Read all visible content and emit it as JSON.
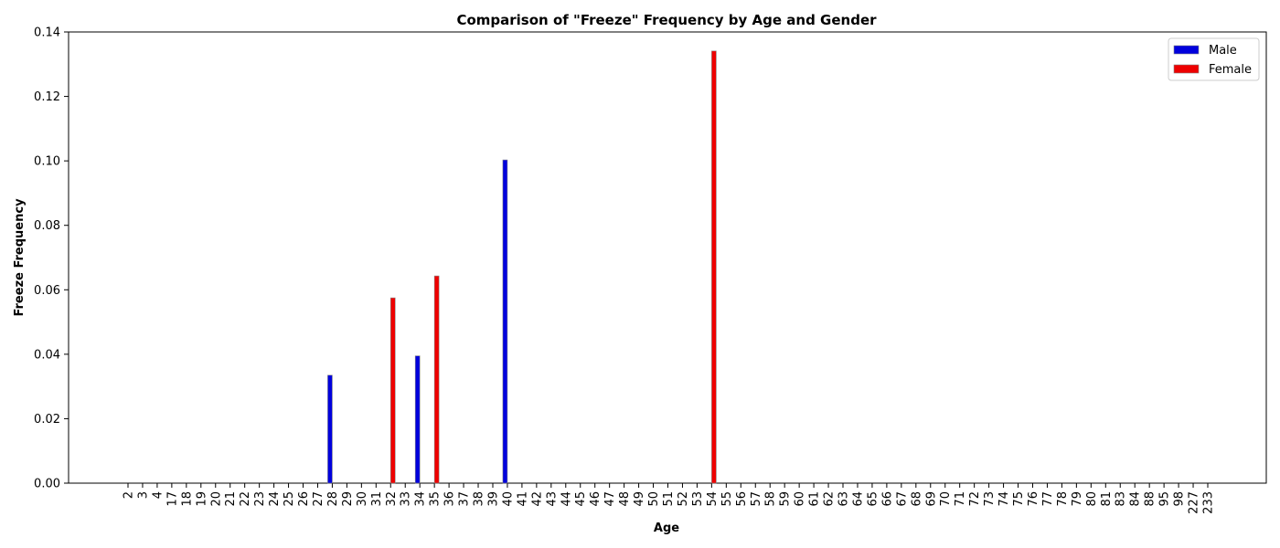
{
  "chart_data": {
    "type": "bar",
    "title": "Comparison of \"Freeze\" Frequency by Age and Gender",
    "xlabel": "Age",
    "ylabel": "Freeze Frequency",
    "ylim": [
      0,
      0.14
    ],
    "y_ticks": [
      "0.00",
      "0.02",
      "0.04",
      "0.06",
      "0.08",
      "0.10",
      "0.12",
      "0.14"
    ],
    "grid": false,
    "legend_position": "top-right",
    "categories": [
      "2",
      "3",
      "4",
      "17",
      "18",
      "19",
      "20",
      "21",
      "22",
      "23",
      "24",
      "25",
      "26",
      "27",
      "28",
      "29",
      "30",
      "31",
      "32",
      "33",
      "34",
      "35",
      "36",
      "37",
      "38",
      "39",
      "40",
      "41",
      "42",
      "43",
      "44",
      "45",
      "46",
      "47",
      "48",
      "49",
      "50",
      "51",
      "52",
      "53",
      "54",
      "55",
      "56",
      "57",
      "58",
      "59",
      "60",
      "61",
      "62",
      "63",
      "64",
      "65",
      "66",
      "67",
      "68",
      "69",
      "70",
      "71",
      "72",
      "73",
      "74",
      "75",
      "76",
      "77",
      "78",
      "79",
      "80",
      "81",
      "83",
      "84",
      "88",
      "95",
      "98",
      "227",
      "233"
    ],
    "series": [
      {
        "name": "Male",
        "color": "#0000dd",
        "values": [
          0,
          0,
          0,
          0,
          0,
          0,
          0,
          0,
          0,
          0,
          0,
          0,
          0,
          0,
          0.0335,
          0,
          0,
          0,
          0,
          0,
          0.0395,
          0,
          0,
          0,
          0,
          0,
          0.1003,
          0,
          0,
          0,
          0,
          0,
          0,
          0,
          0,
          0,
          0,
          0,
          0,
          0,
          0,
          0,
          0,
          0,
          0,
          0,
          0,
          0,
          0,
          0,
          0,
          0,
          0,
          0,
          0,
          0,
          0,
          0,
          0,
          0,
          0,
          0,
          0,
          0,
          0,
          0,
          0,
          0,
          0,
          0,
          0,
          0,
          0,
          0,
          0
        ]
      },
      {
        "name": "Female",
        "color": "#ee0000",
        "values": [
          0,
          0,
          0,
          0,
          0,
          0,
          0,
          0,
          0,
          0,
          0,
          0,
          0,
          0,
          0,
          0,
          0,
          0,
          0.0575,
          0,
          0,
          0.0643,
          0,
          0,
          0,
          0,
          0,
          0,
          0,
          0,
          0,
          0,
          0,
          0,
          0,
          0,
          0,
          0,
          0,
          0,
          0.1341,
          0,
          0,
          0,
          0,
          0,
          0,
          0,
          0,
          0,
          0,
          0,
          0,
          0,
          0,
          0,
          0,
          0,
          0,
          0,
          0,
          0,
          0,
          0,
          0,
          0,
          0,
          0,
          0,
          0,
          0,
          0,
          0,
          0,
          0
        ]
      }
    ]
  }
}
